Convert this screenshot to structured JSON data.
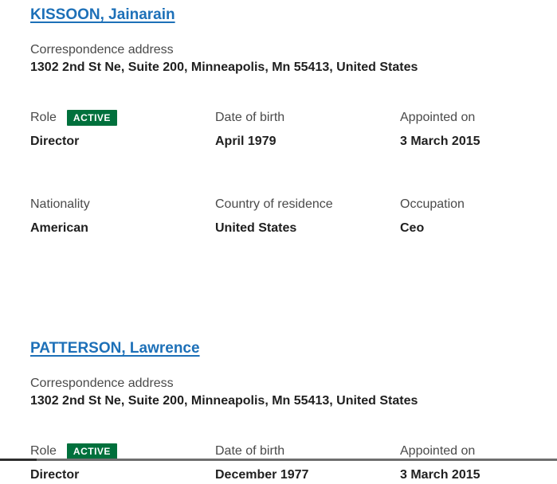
{
  "theme": {
    "link_color": "#1d70b8",
    "label_color": "#4a4a4a",
    "value_color": "#1f1f1f",
    "badge_bg": "#00703c",
    "badge_text_color": "#ffffff"
  },
  "officers": [
    {
      "name": "KISSOON, Jainarain",
      "correspondence_label": "Correspondence address",
      "address": "1302 2nd St Ne, Suite 200, Minneapolis, Mn 55413, United States",
      "fields": [
        {
          "label": "Role",
          "badge": "ACTIVE",
          "value": "Director"
        },
        {
          "label": "Date of birth",
          "value": "April 1979"
        },
        {
          "label": "Appointed on",
          "value": "3 March 2015"
        },
        {
          "label": "Nationality",
          "value": "American"
        },
        {
          "label": "Country of residence",
          "value": "United States"
        },
        {
          "label": "Occupation",
          "value": "Ceo"
        }
      ]
    },
    {
      "name": "PATTERSON, Lawrence",
      "correspondence_label": "Correspondence address",
      "address": "1302 2nd St Ne, Suite 200, Minneapolis, Mn 55413, United States",
      "fields": [
        {
          "label": "Role",
          "badge": "ACTIVE",
          "value": "Director"
        },
        {
          "label": "Date of birth",
          "value": "December 1977"
        },
        {
          "label": "Appointed on",
          "value": "3 March 2015"
        }
      ]
    }
  ]
}
